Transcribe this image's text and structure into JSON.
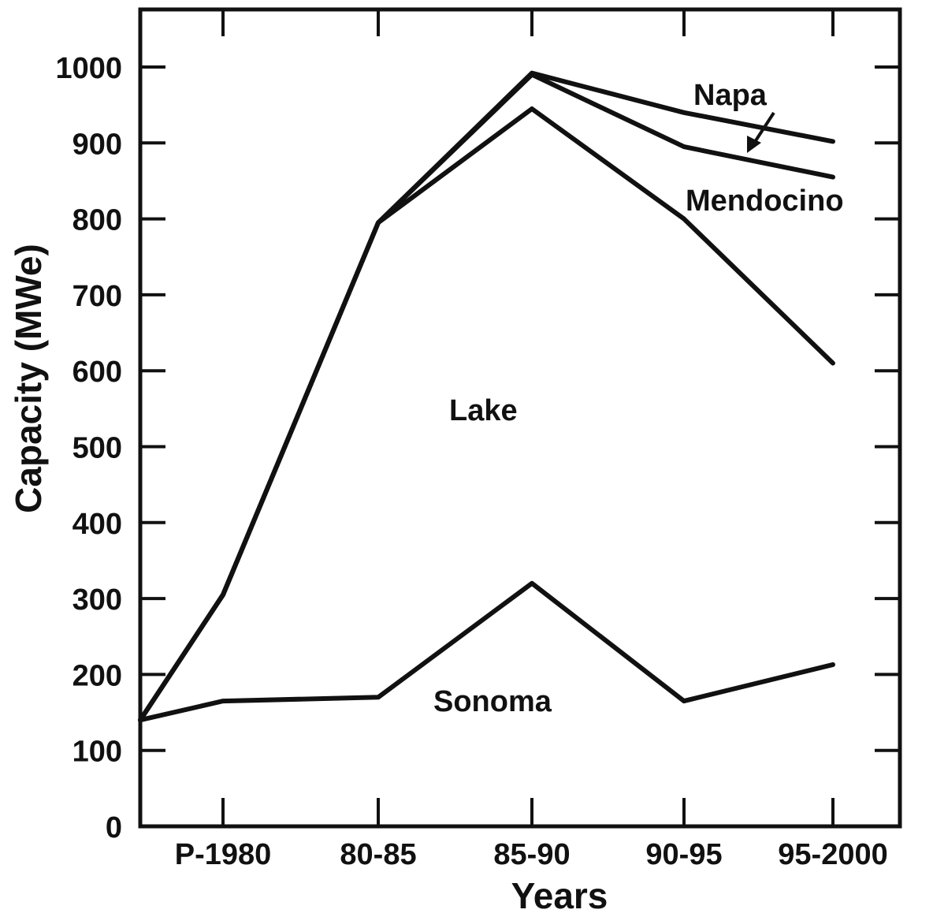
{
  "chart_data": {
    "type": "line",
    "xlabel": "Years",
    "ylabel": "Capacity (MWe)",
    "ylim": [
      0,
      1000
    ],
    "yticks": [
      0,
      100,
      200,
      300,
      400,
      500,
      600,
      700,
      800,
      900,
      1000
    ],
    "categories": [
      "P-1980",
      "80-85",
      "85-90",
      "90-95",
      "95-2000"
    ],
    "grid": false,
    "series": [
      {
        "name": "Sonoma",
        "x": [
          "P-1980",
          "80-85",
          "85-90",
          "90-95",
          "95-2000"
        ],
        "values": [
          165,
          170,
          320,
          165,
          213
        ]
      },
      {
        "name": "Lake",
        "x": [
          "P-1980",
          "80-85",
          "85-90",
          "90-95",
          "95-2000"
        ],
        "values": [
          305,
          795,
          945,
          800,
          610
        ]
      },
      {
        "name": "Mendocino",
        "x": [
          "P-1980",
          "80-85",
          "85-90",
          "90-95",
          "95-2000"
        ],
        "values": [
          305,
          795,
          990,
          895,
          855
        ]
      },
      {
        "name": "Napa",
        "x": [
          "P-1980",
          "80-85",
          "85-90",
          "90-95",
          "95-2000"
        ],
        "values": [
          305,
          795,
          992,
          940,
          902
        ]
      }
    ]
  }
}
